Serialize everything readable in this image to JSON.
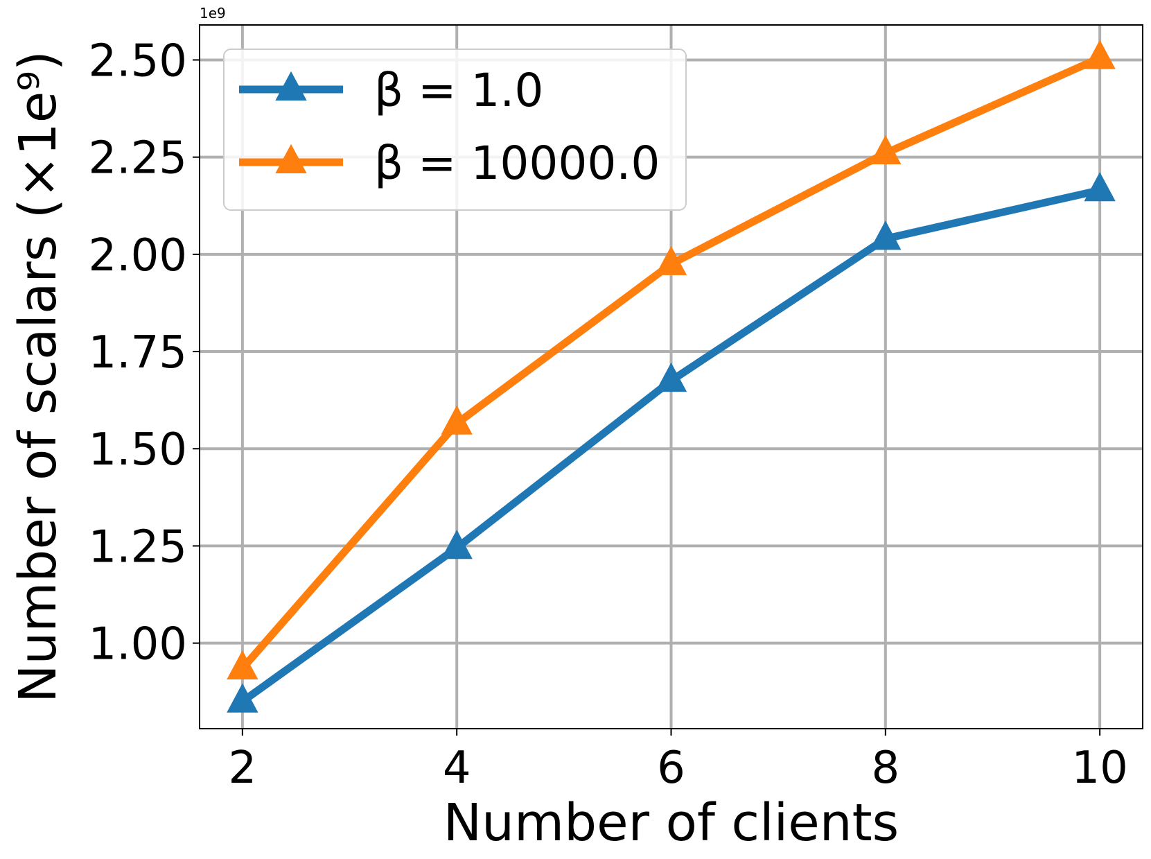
{
  "chart_data": {
    "type": "line",
    "title": "",
    "xlabel": "Number of clients",
    "ylabel": "Number of scalars (×1e⁹)",
    "y_offset_text": "1e9",
    "x": [
      2,
      4,
      6,
      8,
      10
    ],
    "x_ticks": [
      "2",
      "4",
      "6",
      "8",
      "10"
    ],
    "y_ticks": [
      "1.00",
      "1.25",
      "1.50",
      "1.75",
      "2.00",
      "2.25",
      "2.50"
    ],
    "y_tick_values": [
      1.0,
      1.25,
      1.5,
      1.75,
      2.0,
      2.25,
      2.5
    ],
    "xlim": [
      1.6,
      10.4
    ],
    "ylim": [
      0.78,
      2.59
    ],
    "grid": true,
    "legend_position": "upper left",
    "marker": "triangle",
    "series": [
      {
        "name": "β = 1.0",
        "color": "#1f77b4",
        "values": [
          0.85,
          1.245,
          1.675,
          2.04,
          2.165
        ]
      },
      {
        "name": "β = 10000.0",
        "color": "#ff7f0e",
        "values": [
          0.935,
          1.565,
          1.975,
          2.26,
          2.505
        ]
      }
    ]
  }
}
